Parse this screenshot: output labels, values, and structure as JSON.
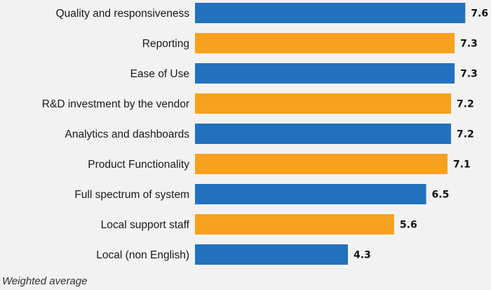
{
  "chart_data": {
    "type": "bar",
    "orientation": "horizontal",
    "categories": [
      "Quality and responsiveness",
      "Reporting",
      "Ease of Use",
      "R&D investment by the vendor",
      "Analytics and dashboards",
      "Product Functionality",
      "Full spectrum of system",
      "Local support staff",
      "Local (non English)"
    ],
    "values": [
      7.6,
      7.3,
      7.3,
      7.2,
      7.2,
      7.1,
      6.5,
      5.6,
      4.3
    ],
    "value_labels": [
      "7.6",
      "7.3",
      "7.3",
      "7.2",
      "7.2",
      "7.1",
      "6.5",
      "5.6",
      "4.3"
    ],
    "bar_colors": [
      "#2271be",
      "#f7a11e",
      "#2271be",
      "#f7a11e",
      "#2271be",
      "#f7a11e",
      "#2271be",
      "#f7a11e",
      "#2271be"
    ],
    "xlim": [
      0,
      10
    ],
    "grid": false,
    "legend": "none"
  },
  "footnote": "Weighted average",
  "colors": {
    "background": "#f2f2f2",
    "blue": "#2271be",
    "orange": "#f7a11e"
  }
}
